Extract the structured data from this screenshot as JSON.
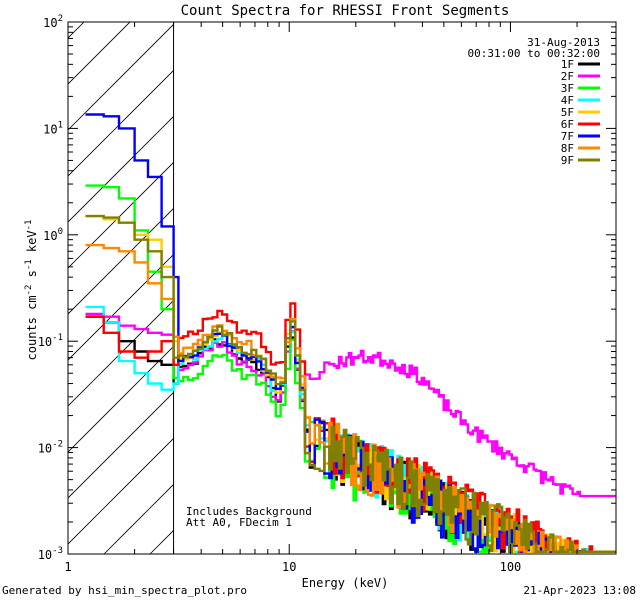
{
  "chart_data": {
    "type": "line",
    "title": "Count Spectra for RHESSI Front Segments",
    "xlabel": "Energy (keV)",
    "ylabel": {
      "base": "counts cm",
      "e1": "-2",
      "mid1": " s",
      "e2": "-1",
      "mid2": " keV",
      "e3": "-1"
    },
    "xscale": "log",
    "yscale": "log",
    "xlim": [
      1,
      300
    ],
    "ylim": [
      0.001,
      100
    ],
    "x_ticks": [
      {
        "value": 1,
        "label": "1"
      },
      {
        "value": 10,
        "label": "10"
      },
      {
        "value": 100,
        "label": "100"
      }
    ],
    "y_ticks": [
      {
        "value": 0.001,
        "base": "10",
        "exp": "-3"
      },
      {
        "value": 0.01,
        "base": "10",
        "exp": "-2"
      },
      {
        "value": 0.1,
        "base": "10",
        "exp": "-1"
      },
      {
        "value": 1,
        "base": "10",
        "exp": "0"
      },
      {
        "value": 10,
        "base": "10",
        "exp": "1"
      },
      {
        "value": 100,
        "base": "10",
        "exp": "2"
      }
    ],
    "excluded_region": {
      "x_from": 1,
      "x_to": 3
    },
    "annotations": {
      "date": "31-Aug-2013",
      "time_range": "00:31:00 to 00:32:00",
      "background_note": "Includes Background",
      "attenuator_note": "Att A0, FDecim 1"
    },
    "series": [
      {
        "name": "1F",
        "color": "#000000",
        "lowE": [
          0.17,
          0.15,
          0.1,
          0.08,
          0.065,
          0.06,
          0.04
        ],
        "plateau": 0.075,
        "hump": 1.3,
        "tail10": 0.008,
        "seed": 11
      },
      {
        "name": "2F",
        "color": "#ff00ff",
        "lowE": [
          0.18,
          0.17,
          0.14,
          0.13,
          0.12,
          0.115,
          0.11
        ],
        "plateau": 0.07,
        "hump": 1.2,
        "tail10": 0.06,
        "seed": 23
      },
      {
        "name": "3F",
        "color": "#00ff00",
        "lowE": [
          2.9,
          2.8,
          2.2,
          1.1,
          0.45,
          0.2,
          0.045
        ],
        "plateau": 0.055,
        "hump": 1.3,
        "tail10": 0.007,
        "seed": 37
      },
      {
        "name": "4F",
        "color": "#00ffff",
        "lowE": [
          0.21,
          0.15,
          0.065,
          0.05,
          0.04,
          0.035,
          0.04
        ],
        "plateau": 0.08,
        "hump": 1.3,
        "tail10": 0.009,
        "seed": 41
      },
      {
        "name": "5F",
        "color": "#ffcc00",
        "lowE": [
          1.5,
          1.4,
          1.3,
          1.0,
          0.9,
          0.5,
          0.1
        ],
        "plateau": 0.09,
        "hump": 1.4,
        "tail10": 0.009,
        "seed": 53
      },
      {
        "name": "6F",
        "color": "#ff0000",
        "lowE": [
          0.17,
          0.12,
          0.08,
          0.07,
          0.08,
          0.1,
          0.06
        ],
        "plateau": 0.14,
        "hump": 1.5,
        "tail10": 0.01,
        "seed": 67
      },
      {
        "name": "7F",
        "color": "#0000ff",
        "lowE": [
          13.5,
          13.0,
          10.0,
          5.0,
          3.5,
          1.2,
          0.4
        ],
        "plateau": 0.085,
        "hump": 1.3,
        "tail10": 0.008,
        "seed": 71
      },
      {
        "name": "8F",
        "color": "#ff8800",
        "lowE": [
          0.8,
          0.75,
          0.7,
          0.55,
          0.35,
          0.25,
          0.11
        ],
        "plateau": 0.1,
        "hump": 1.4,
        "tail10": 0.009,
        "seed": 83
      },
      {
        "name": "9F",
        "color": "#808000",
        "lowE": [
          1.5,
          1.45,
          1.3,
          0.9,
          0.7,
          0.4,
          0.07
        ],
        "plateau": 0.095,
        "hump": 1.4,
        "tail10": 0.009,
        "seed": 97
      }
    ]
  },
  "footer": {
    "generated_by": "Generated by hsi_min_spectra_plot.pro",
    "timestamp": "21-Apr-2023 13:08"
  }
}
